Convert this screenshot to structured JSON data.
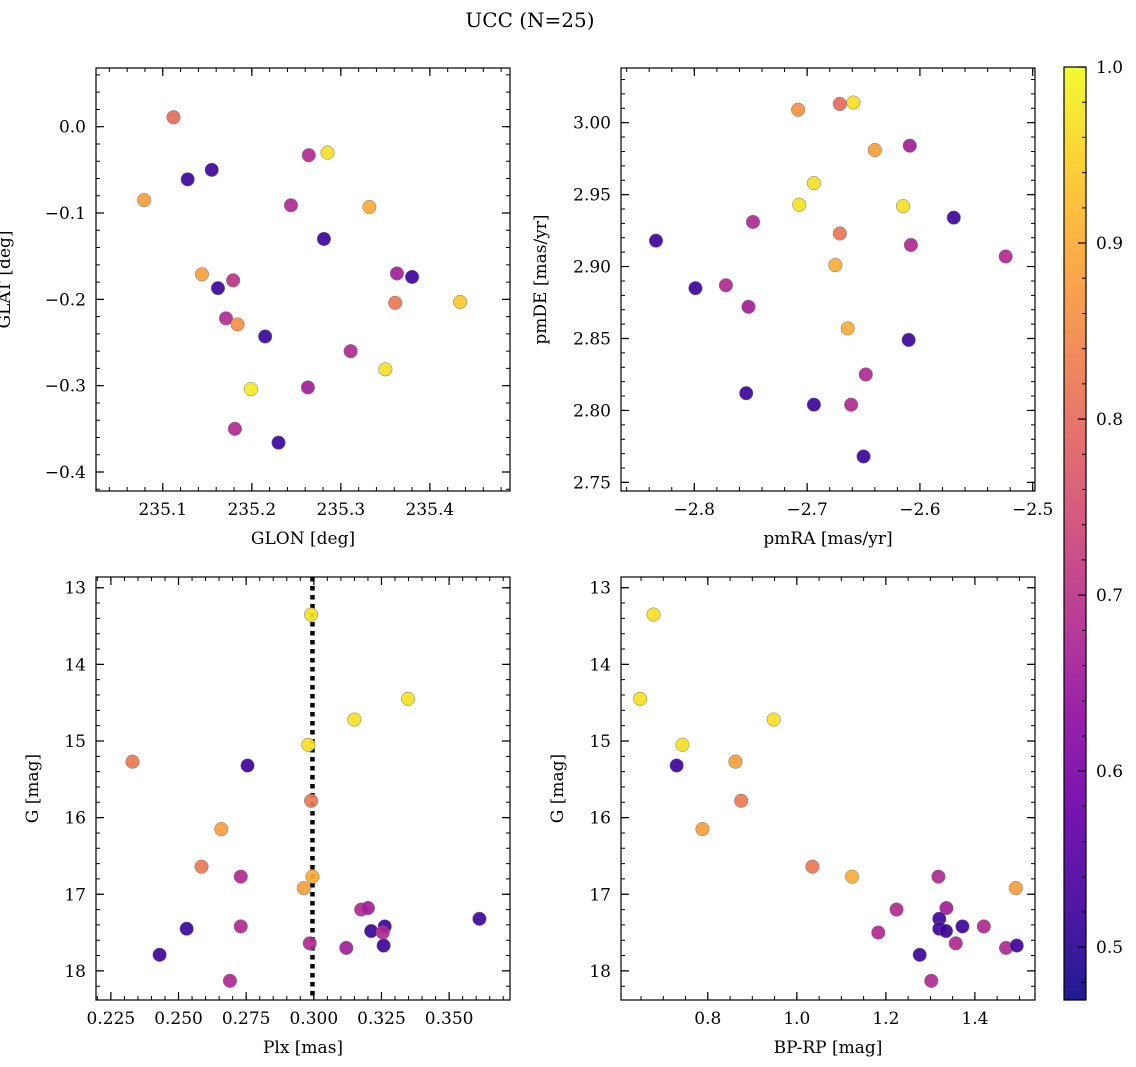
{
  "figure": {
    "title": "UCC (N=25)"
  },
  "colorbar": {
    "colormap": "plasma",
    "range": [
      0.47,
      1.0
    ],
    "ticks": [
      0.5,
      0.6,
      0.7,
      0.8,
      0.9,
      1.0
    ],
    "tick_labels": [
      "0.5",
      "0.6",
      "0.7",
      "0.8",
      "0.9",
      "1.0"
    ]
  },
  "chart_data": [
    {
      "type": "scatter",
      "title": "",
      "xlabel": "GLON [deg]",
      "ylabel": "GLAT [deg]",
      "xlim": [
        235.025,
        235.49
      ],
      "ylim": [
        -0.422,
        0.068
      ],
      "x_ticks": [
        235.1,
        235.2,
        235.3,
        235.4
      ],
      "x_tick_labels": [
        "235.1",
        "235.2",
        "235.3",
        "235.4"
      ],
      "y_ticks": [
        0.0,
        -0.1,
        -0.2,
        -0.3,
        -0.4
      ],
      "y_tick_labels": [
        "0.0",
        "−0.1",
        "−0.2",
        "−0.3",
        "−0.4"
      ],
      "x_minor_step": 0.02,
      "y_minor_step": 0.02,
      "points": [
        {
          "x": 235.112,
          "y": 0.011,
          "c": 0.8
        },
        {
          "x": 235.128,
          "y": -0.061,
          "c": 0.52
        },
        {
          "x": 235.155,
          "y": -0.05,
          "c": 0.52
        },
        {
          "x": 235.079,
          "y": -0.085,
          "c": 0.88
        },
        {
          "x": 235.264,
          "y": -0.033,
          "c": 0.68
        },
        {
          "x": 235.285,
          "y": -0.03,
          "c": 0.97
        },
        {
          "x": 235.244,
          "y": -0.091,
          "c": 0.68
        },
        {
          "x": 235.332,
          "y": -0.093,
          "c": 0.9
        },
        {
          "x": 235.281,
          "y": -0.13,
          "c": 0.52
        },
        {
          "x": 235.144,
          "y": -0.171,
          "c": 0.88
        },
        {
          "x": 235.179,
          "y": -0.178,
          "c": 0.7
        },
        {
          "x": 235.162,
          "y": -0.187,
          "c": 0.52
        },
        {
          "x": 235.171,
          "y": -0.222,
          "c": 0.68
        },
        {
          "x": 235.184,
          "y": -0.229,
          "c": 0.86
        },
        {
          "x": 235.215,
          "y": -0.243,
          "c": 0.52
        },
        {
          "x": 235.363,
          "y": -0.17,
          "c": 0.66
        },
        {
          "x": 235.38,
          "y": -0.174,
          "c": 0.52
        },
        {
          "x": 235.361,
          "y": -0.204,
          "c": 0.82
        },
        {
          "x": 235.434,
          "y": -0.203,
          "c": 0.94
        },
        {
          "x": 235.311,
          "y": -0.26,
          "c": 0.68
        },
        {
          "x": 235.35,
          "y": -0.281,
          "c": 0.97
        },
        {
          "x": 235.199,
          "y": -0.304,
          "c": 0.98
        },
        {
          "x": 235.263,
          "y": -0.302,
          "c": 0.66
        },
        {
          "x": 235.181,
          "y": -0.35,
          "c": 0.68
        },
        {
          "x": 235.23,
          "y": -0.366,
          "c": 0.52
        }
      ]
    },
    {
      "type": "scatter",
      "title": "",
      "xlabel": "pmRA [mas/yr]",
      "ylabel": "pmDE [mas/yr]",
      "xlim": [
        -2.865,
        -2.498
      ],
      "ylim": [
        2.744,
        3.038
      ],
      "x_ticks": [
        -2.8,
        -2.7,
        -2.6,
        -2.5
      ],
      "x_tick_labels": [
        "−2.8",
        "−2.7",
        "−2.6",
        "−2.5"
      ],
      "y_ticks": [
        2.75,
        2.8,
        2.85,
        2.9,
        2.95,
        3.0
      ],
      "y_tick_labels": [
        "2.75",
        "2.80",
        "2.85",
        "2.90",
        "2.95",
        "3.00"
      ],
      "x_minor_step": 0.02,
      "y_minor_step": 0.01,
      "points": [
        {
          "x": -2.708,
          "y": 3.009,
          "c": 0.86
        },
        {
          "x": -2.671,
          "y": 3.013,
          "c": 0.8
        },
        {
          "x": -2.659,
          "y": 3.014,
          "c": 0.97
        },
        {
          "x": -2.64,
          "y": 2.981,
          "c": 0.88
        },
        {
          "x": -2.609,
          "y": 2.984,
          "c": 0.66
        },
        {
          "x": -2.694,
          "y": 2.958,
          "c": 0.97
        },
        {
          "x": -2.707,
          "y": 2.943,
          "c": 0.97
        },
        {
          "x": -2.615,
          "y": 2.942,
          "c": 0.97
        },
        {
          "x": -2.748,
          "y": 2.931,
          "c": 0.68
        },
        {
          "x": -2.57,
          "y": 2.934,
          "c": 0.52
        },
        {
          "x": -2.834,
          "y": 2.918,
          "c": 0.52
        },
        {
          "x": -2.671,
          "y": 2.923,
          "c": 0.82
        },
        {
          "x": -2.608,
          "y": 2.915,
          "c": 0.68
        },
        {
          "x": -2.524,
          "y": 2.907,
          "c": 0.68
        },
        {
          "x": -2.675,
          "y": 2.901,
          "c": 0.9
        },
        {
          "x": -2.799,
          "y": 2.885,
          "c": 0.52
        },
        {
          "x": -2.772,
          "y": 2.887,
          "c": 0.68
        },
        {
          "x": -2.752,
          "y": 2.872,
          "c": 0.66
        },
        {
          "x": -2.664,
          "y": 2.857,
          "c": 0.9
        },
        {
          "x": -2.61,
          "y": 2.849,
          "c": 0.52
        },
        {
          "x": -2.648,
          "y": 2.825,
          "c": 0.68
        },
        {
          "x": -2.754,
          "y": 2.812,
          "c": 0.52
        },
        {
          "x": -2.694,
          "y": 2.804,
          "c": 0.52
        },
        {
          "x": -2.661,
          "y": 2.804,
          "c": 0.68
        },
        {
          "x": -2.65,
          "y": 2.768,
          "c": 0.52
        }
      ]
    },
    {
      "type": "scatter",
      "title": "",
      "xlabel": "Plx [mas]",
      "ylabel": "G [mag]",
      "xlim": [
        0.2195,
        0.3725
      ],
      "ylim": [
        18.38,
        12.86
      ],
      "x_ticks": [
        0.225,
        0.25,
        0.275,
        0.3,
        0.325,
        0.35
      ],
      "x_tick_labels": [
        "0.225",
        "0.250",
        "0.275",
        "0.300",
        "0.325",
        "0.350"
      ],
      "y_ticks": [
        13,
        14,
        15,
        16,
        17,
        18
      ],
      "y_tick_labels": [
        "13",
        "14",
        "15",
        "16",
        "17",
        "18"
      ],
      "x_minor_step": 0.005,
      "y_minor_step": 0.2,
      "vline": {
        "x": 0.2995,
        "style": "dotted"
      },
      "points": [
        {
          "x": 0.299,
          "y": 13.35,
          "c": 0.97
        },
        {
          "x": 0.3348,
          "y": 14.45,
          "c": 0.97
        },
        {
          "x": 0.315,
          "y": 14.72,
          "c": 0.97
        },
        {
          "x": 0.298,
          "y": 15.05,
          "c": 0.97
        },
        {
          "x": 0.233,
          "y": 15.27,
          "c": 0.82
        },
        {
          "x": 0.2755,
          "y": 15.32,
          "c": 0.52
        },
        {
          "x": 0.299,
          "y": 15.78,
          "c": 0.82
        },
        {
          "x": 0.2658,
          "y": 16.15,
          "c": 0.88
        },
        {
          "x": 0.2585,
          "y": 16.64,
          "c": 0.82
        },
        {
          "x": 0.273,
          "y": 16.77,
          "c": 0.68
        },
        {
          "x": 0.2995,
          "y": 16.77,
          "c": 0.9
        },
        {
          "x": 0.2963,
          "y": 16.92,
          "c": 0.88
        },
        {
          "x": 0.3175,
          "y": 17.2,
          "c": 0.68
        },
        {
          "x": 0.32,
          "y": 17.18,
          "c": 0.66
        },
        {
          "x": 0.3612,
          "y": 17.32,
          "c": 0.52
        },
        {
          "x": 0.3262,
          "y": 17.42,
          "c": 0.52
        },
        {
          "x": 0.253,
          "y": 17.45,
          "c": 0.52
        },
        {
          "x": 0.273,
          "y": 17.42,
          "c": 0.68
        },
        {
          "x": 0.3212,
          "y": 17.48,
          "c": 0.52
        },
        {
          "x": 0.3255,
          "y": 17.5,
          "c": 0.68
        },
        {
          "x": 0.2985,
          "y": 17.64,
          "c": 0.68
        },
        {
          "x": 0.312,
          "y": 17.7,
          "c": 0.66
        },
        {
          "x": 0.3258,
          "y": 17.67,
          "c": 0.52
        },
        {
          "x": 0.243,
          "y": 17.79,
          "c": 0.52
        },
        {
          "x": 0.269,
          "y": 18.13,
          "c": 0.68
        }
      ]
    },
    {
      "type": "scatter",
      "title": "",
      "xlabel": "BP-RP [mag]",
      "ylabel": "G [mag]",
      "xlim": [
        0.605,
        1.535
      ],
      "ylim": [
        18.38,
        12.86
      ],
      "x_ticks": [
        0.8,
        1.0,
        1.2,
        1.4
      ],
      "x_tick_labels": [
        "0.8",
        "1.0",
        "1.2",
        "1.4"
      ],
      "y_ticks": [
        13,
        14,
        15,
        16,
        17,
        18
      ],
      "y_tick_labels": [
        "13",
        "14",
        "15",
        "16",
        "17",
        "18"
      ],
      "x_minor_step": 0.05,
      "y_minor_step": 0.2,
      "points": [
        {
          "x": 0.678,
          "y": 13.35,
          "c": 0.97
        },
        {
          "x": 0.648,
          "y": 14.45,
          "c": 0.97
        },
        {
          "x": 0.948,
          "y": 14.72,
          "c": 0.97
        },
        {
          "x": 0.743,
          "y": 15.05,
          "c": 0.97
        },
        {
          "x": 0.73,
          "y": 15.32,
          "c": 0.52
        },
        {
          "x": 0.862,
          "y": 15.27,
          "c": 0.88
        },
        {
          "x": 0.875,
          "y": 15.78,
          "c": 0.82
        },
        {
          "x": 0.788,
          "y": 16.15,
          "c": 0.88
        },
        {
          "x": 1.035,
          "y": 16.64,
          "c": 0.82
        },
        {
          "x": 1.124,
          "y": 16.77,
          "c": 0.9
        },
        {
          "x": 1.318,
          "y": 16.77,
          "c": 0.68
        },
        {
          "x": 1.492,
          "y": 16.92,
          "c": 0.88
        },
        {
          "x": 1.224,
          "y": 17.2,
          "c": 0.68
        },
        {
          "x": 1.336,
          "y": 17.18,
          "c": 0.66
        },
        {
          "x": 1.32,
          "y": 17.32,
          "c": 0.52
        },
        {
          "x": 1.372,
          "y": 17.42,
          "c": 0.52
        },
        {
          "x": 1.42,
          "y": 17.42,
          "c": 0.68
        },
        {
          "x": 1.32,
          "y": 17.45,
          "c": 0.52
        },
        {
          "x": 1.335,
          "y": 17.48,
          "c": 0.52
        },
        {
          "x": 1.183,
          "y": 17.5,
          "c": 0.68
        },
        {
          "x": 1.357,
          "y": 17.64,
          "c": 0.68
        },
        {
          "x": 1.47,
          "y": 17.7,
          "c": 0.68
        },
        {
          "x": 1.494,
          "y": 17.67,
          "c": 0.52
        },
        {
          "x": 1.276,
          "y": 17.79,
          "c": 0.52
        },
        {
          "x": 1.302,
          "y": 18.13,
          "c": 0.68
        }
      ]
    }
  ]
}
